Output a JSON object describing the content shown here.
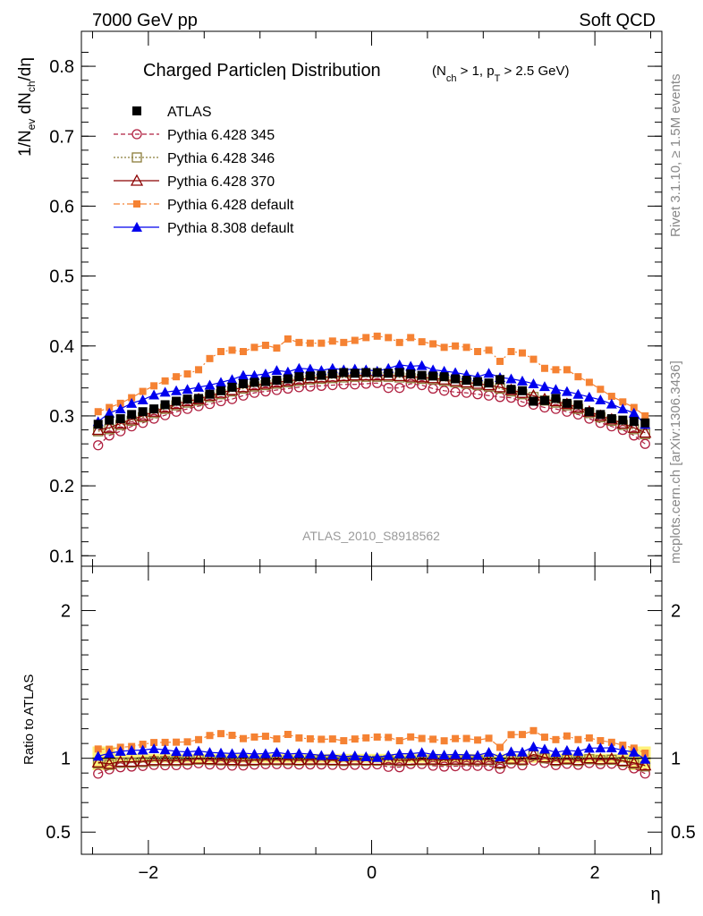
{
  "header": {
    "left": "7000 GeV pp",
    "right": "Soft QCD"
  },
  "side_labels": {
    "rivet": "Rivet 3.1.10, ≥ 1.5M events",
    "mcplots": "mcplots.cern.ch [arXiv:1306.3436]"
  },
  "watermark": "ATLAS_2010_S8918562",
  "chart_data": {
    "type": "scatter",
    "title": "Charged Particleη Distribution",
    "title_suffix": {
      "n": "N",
      "n_sub": "ch",
      "mid": " > 1, p",
      "p_sub": "T",
      "end": " > 2.5 GeV)",
      "open": "("
    },
    "xlabel": "η",
    "ylabel": {
      "a": "1/N",
      "a_sub": "ev",
      "b": " dN",
      "b_sub": "ch",
      "c": "/dη"
    },
    "ratio_ylabel": "Ratio to ATLAS",
    "xlim": [
      -2.6,
      2.6
    ],
    "ylim": [
      0.085,
      0.85
    ],
    "ratio_ylim": [
      0.35,
      2.3
    ],
    "x_ticks": [
      "−2",
      "0",
      "2"
    ],
    "y_ticks": [
      "0.1",
      "0.2",
      "0.3",
      "0.4",
      "0.5",
      "0.6",
      "0.7",
      "0.8"
    ],
    "ratio_ticks": [
      "0.5",
      "1",
      "2"
    ],
    "legend_position": "top-left",
    "x": [
      -2.45,
      -2.35,
      -2.25,
      -2.15,
      -2.05,
      -1.95,
      -1.85,
      -1.75,
      -1.65,
      -1.55,
      -1.45,
      -1.35,
      -1.25,
      -1.15,
      -1.05,
      -0.95,
      -0.85,
      -0.75,
      -0.65,
      -0.55,
      -0.45,
      -0.35,
      -0.25,
      -0.15,
      -0.05,
      0.05,
      0.15,
      0.25,
      0.35,
      0.45,
      0.55,
      0.65,
      0.75,
      0.85,
      0.95,
      1.05,
      1.15,
      1.25,
      1.35,
      1.45,
      1.55,
      1.65,
      1.75,
      1.85,
      1.95,
      2.05,
      2.15,
      2.25,
      2.35,
      2.45
    ],
    "series": [
      {
        "name": "ATLAS",
        "color": "#000000",
        "marker": "square-filled",
        "line": "none",
        "values": [
          0.288,
          0.294,
          0.296,
          0.302,
          0.306,
          0.31,
          0.316,
          0.321,
          0.324,
          0.325,
          0.331,
          0.336,
          0.341,
          0.346,
          0.348,
          0.349,
          0.351,
          0.353,
          0.356,
          0.357,
          0.358,
          0.36,
          0.362,
          0.361,
          0.362,
          0.362,
          0.361,
          0.362,
          0.36,
          0.358,
          0.357,
          0.356,
          0.353,
          0.351,
          0.349,
          0.347,
          0.352,
          0.338,
          0.336,
          0.321,
          0.322,
          0.325,
          0.318,
          0.316,
          0.306,
          0.302,
          0.296,
          0.294,
          0.292,
          0.29
        ]
      },
      {
        "name": "Pythia 6.428 345",
        "color": "#b02040",
        "marker": "circle-open",
        "line": "dashed",
        "values": [
          0.258,
          0.272,
          0.278,
          0.285,
          0.29,
          0.296,
          0.301,
          0.306,
          0.31,
          0.314,
          0.317,
          0.321,
          0.324,
          0.329,
          0.333,
          0.335,
          0.337,
          0.339,
          0.341,
          0.342,
          0.343,
          0.344,
          0.345,
          0.345,
          0.346,
          0.347,
          0.34,
          0.34,
          0.346,
          0.344,
          0.339,
          0.336,
          0.334,
          0.333,
          0.331,
          0.329,
          0.327,
          0.326,
          0.32,
          0.316,
          0.312,
          0.31,
          0.306,
          0.302,
          0.296,
          0.29,
          0.285,
          0.28,
          0.272,
          0.26
        ]
      },
      {
        "name": "Pythia 6.428 346",
        "color": "#8b7d3a",
        "marker": "square-open",
        "line": "dotted",
        "values": [
          0.278,
          0.281,
          0.287,
          0.293,
          0.298,
          0.304,
          0.31,
          0.315,
          0.319,
          0.322,
          0.327,
          0.331,
          0.335,
          0.339,
          0.342,
          0.344,
          0.346,
          0.348,
          0.35,
          0.352,
          0.353,
          0.354,
          0.355,
          0.356,
          0.356,
          0.356,
          0.356,
          0.355,
          0.354,
          0.353,
          0.352,
          0.35,
          0.348,
          0.346,
          0.344,
          0.342,
          0.339,
          0.335,
          0.331,
          0.327,
          0.322,
          0.319,
          0.315,
          0.31,
          0.304,
          0.298,
          0.293,
          0.287,
          0.281,
          0.274
        ]
      },
      {
        "name": "Pythia 6.428 370",
        "color": "#8b0000",
        "marker": "triangle-open",
        "line": "solid",
        "values": [
          0.28,
          0.283,
          0.289,
          0.295,
          0.3,
          0.306,
          0.312,
          0.317,
          0.321,
          0.324,
          0.329,
          0.333,
          0.337,
          0.341,
          0.344,
          0.346,
          0.348,
          0.35,
          0.352,
          0.354,
          0.355,
          0.356,
          0.357,
          0.358,
          0.358,
          0.358,
          0.358,
          0.357,
          0.356,
          0.355,
          0.354,
          0.352,
          0.35,
          0.348,
          0.346,
          0.344,
          0.341,
          0.337,
          0.333,
          0.329,
          0.324,
          0.321,
          0.317,
          0.312,
          0.306,
          0.3,
          0.295,
          0.289,
          0.283,
          0.276
        ]
      },
      {
        "name": "Pythia 6.428 default",
        "color": "#f58233",
        "marker": "square-filled-small",
        "line": "dashdot",
        "values": [
          0.306,
          0.312,
          0.318,
          0.326,
          0.335,
          0.343,
          0.35,
          0.356,
          0.36,
          0.366,
          0.382,
          0.392,
          0.394,
          0.392,
          0.398,
          0.401,
          0.397,
          0.41,
          0.405,
          0.404,
          0.404,
          0.407,
          0.405,
          0.408,
          0.412,
          0.414,
          0.412,
          0.405,
          0.412,
          0.406,
          0.403,
          0.398,
          0.4,
          0.398,
          0.392,
          0.394,
          0.378,
          0.392,
          0.39,
          0.381,
          0.368,
          0.366,
          0.366,
          0.356,
          0.348,
          0.338,
          0.328,
          0.32,
          0.312,
          0.3
        ]
      },
      {
        "name": "Pythia 8.308 default",
        "color": "#0000ee",
        "marker": "triangle-filled",
        "line": "solid",
        "values": [
          0.292,
          0.304,
          0.31,
          0.318,
          0.323,
          0.33,
          0.334,
          0.336,
          0.338,
          0.341,
          0.344,
          0.348,
          0.352,
          0.358,
          0.358,
          0.36,
          0.365,
          0.363,
          0.368,
          0.367,
          0.365,
          0.368,
          0.366,
          0.367,
          0.366,
          0.364,
          0.368,
          0.373,
          0.371,
          0.372,
          0.366,
          0.364,
          0.362,
          0.359,
          0.356,
          0.361,
          0.355,
          0.353,
          0.35,
          0.346,
          0.342,
          0.338,
          0.335,
          0.331,
          0.327,
          0.323,
          0.317,
          0.31,
          0.304,
          0.288
        ]
      }
    ],
    "ratio_band": {
      "x": [
        -2.5,
        -2.3,
        2.3,
        2.5
      ],
      "half_width_edge": 0.08
    }
  }
}
